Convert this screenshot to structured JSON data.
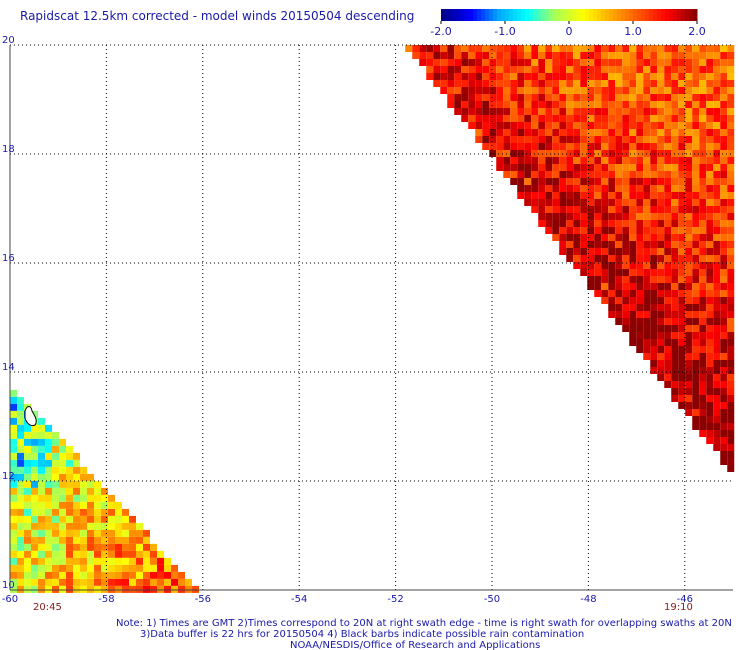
{
  "title": "Rapidscat 12.5km corrected - model winds 20150504 descending",
  "colorbar": {
    "labels": [
      "-2.0",
      "-1.0",
      "0",
      "1.0",
      "2.0"
    ],
    "min": -2.0,
    "max": 2.0,
    "colors": [
      "#00008b",
      "#0000ff",
      "#00aaff",
      "#00ffff",
      "#aaff55",
      "#ffff00",
      "#ffaa00",
      "#ff5500",
      "#ff0000",
      "#8b0000"
    ]
  },
  "axes": {
    "lon_range": [
      -60,
      -45
    ],
    "lat_range": [
      10,
      20
    ],
    "lon_ticks": [
      "-60",
      "-58",
      "-56",
      "-54",
      "-52",
      "-50",
      "-48",
      "-46"
    ],
    "lat_ticks": [
      "10",
      "12",
      "14",
      "16",
      "18",
      "20"
    ]
  },
  "times": {
    "left": "20:45",
    "right": "19:10"
  },
  "notes": [
    "Note: 1) Times are GMT 2)Times correspond to 20N at right swath edge - time is right swath for overlapping swaths at 20N",
    "3)Data buffer is 22 hrs for 20150504 4) Black barbs indicate possible rain contamination",
    "NOAA/NESDIS/Office of Research and Applications"
  ],
  "swaths": [
    {
      "name": "west-swath",
      "polygon_lonlat": [
        [
          -60,
          13.8
        ],
        [
          -60,
          10
        ],
        [
          -56.1,
          10
        ]
      ],
      "pattern": "mixed-low"
    },
    {
      "name": "east-swath",
      "polygon_lonlat": [
        [
          -51.8,
          20
        ],
        [
          -45,
          20
        ],
        [
          -45,
          12.1
        ]
      ],
      "pattern": "high"
    }
  ]
}
